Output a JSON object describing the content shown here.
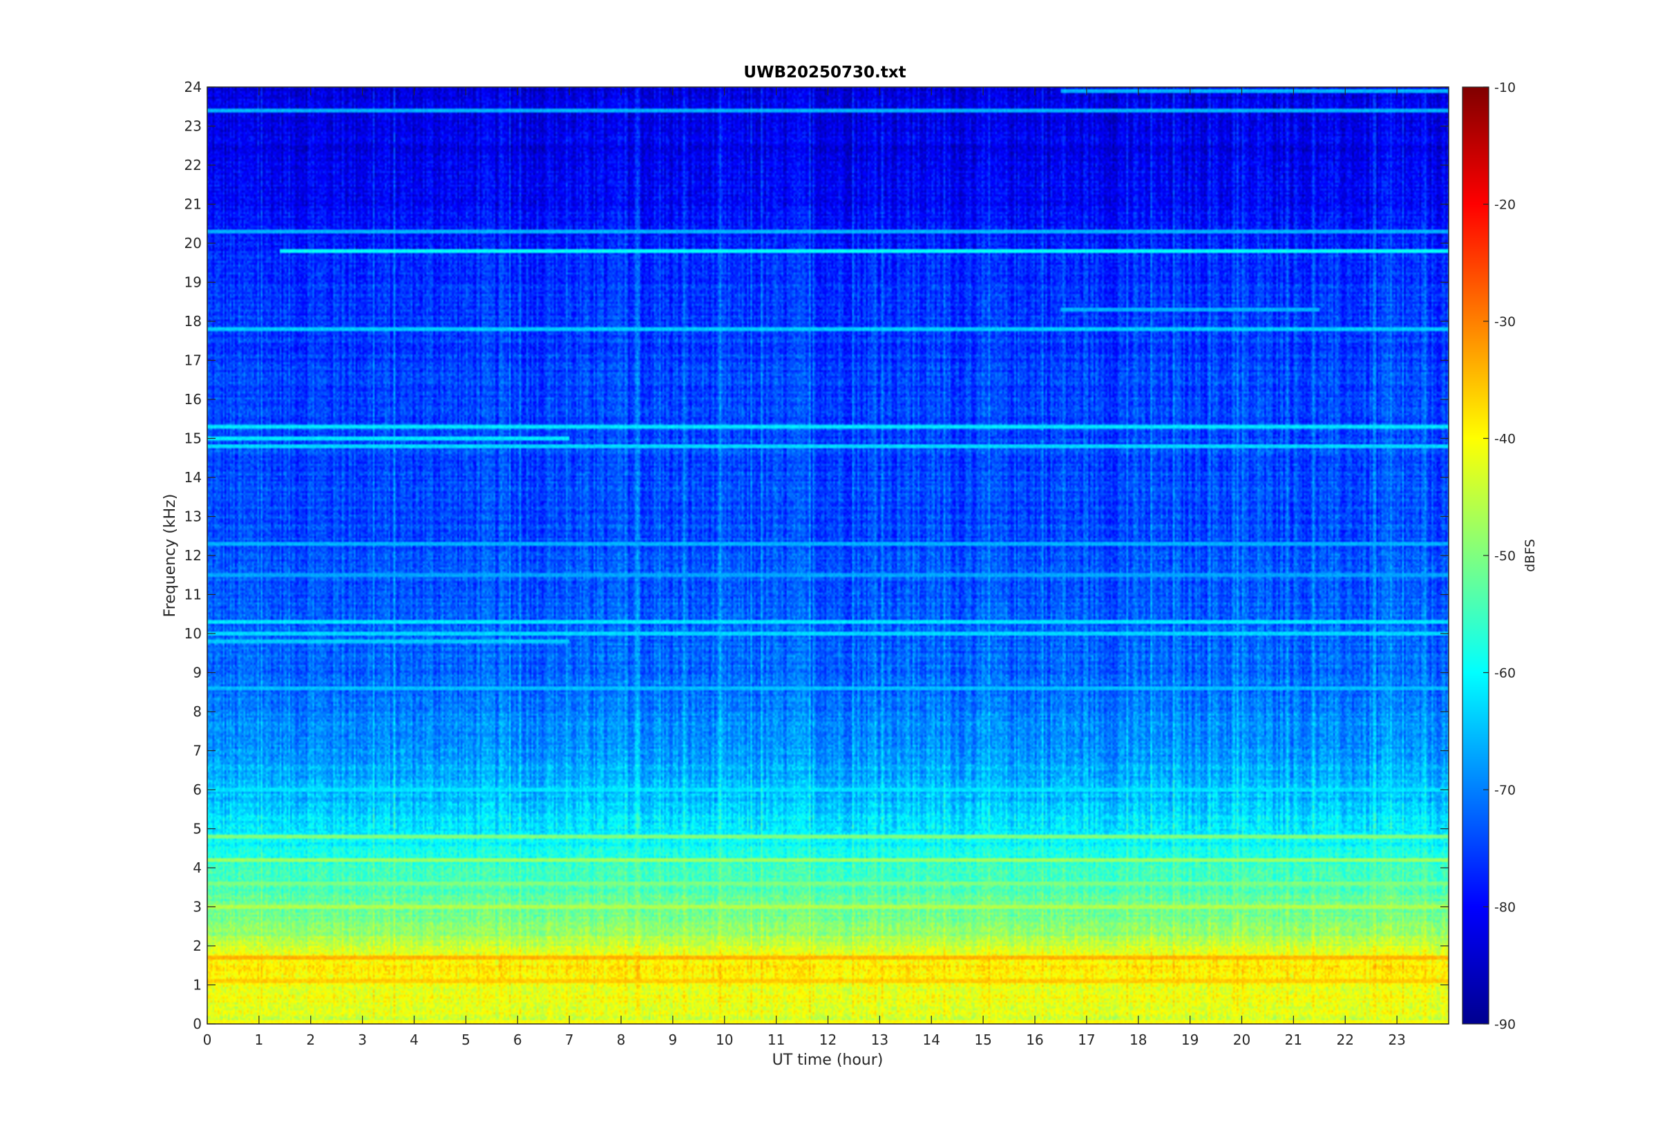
{
  "chart_data": {
    "type": "heatmap",
    "title": "UWB20250730.txt",
    "xlabel": "UT time (hour)",
    "ylabel": "Frequency (kHz)",
    "x_ticks": [
      0,
      1,
      2,
      3,
      4,
      5,
      6,
      7,
      8,
      9,
      10,
      11,
      12,
      13,
      14,
      15,
      16,
      17,
      18,
      19,
      20,
      21,
      22,
      23
    ],
    "y_ticks": [
      0,
      1,
      2,
      3,
      4,
      5,
      6,
      7,
      8,
      9,
      10,
      11,
      12,
      13,
      14,
      15,
      16,
      17,
      18,
      19,
      20,
      21,
      22,
      23,
      24
    ],
    "xlim": [
      0,
      24
    ],
    "ylim": [
      0,
      24
    ],
    "colormap": "jet",
    "colorbar": {
      "label": "dBFS",
      "range": [
        -90,
        -10
      ],
      "ticks": [
        -10,
        -20,
        -30,
        -40,
        -50,
        -60,
        -70,
        -80,
        -90
      ]
    },
    "value_profile_by_frequency": [
      {
        "freq_khz": 0.0,
        "dbfs": -44
      },
      {
        "freq_khz": 0.5,
        "dbfs": -42
      },
      {
        "freq_khz": 1.0,
        "dbfs": -41
      },
      {
        "freq_khz": 1.5,
        "dbfs": -38
      },
      {
        "freq_khz": 2.0,
        "dbfs": -44
      },
      {
        "freq_khz": 2.5,
        "dbfs": -50
      },
      {
        "freq_khz": 3.0,
        "dbfs": -52
      },
      {
        "freq_khz": 4.0,
        "dbfs": -56
      },
      {
        "freq_khz": 5.0,
        "dbfs": -62
      },
      {
        "freq_khz": 6.0,
        "dbfs": -66
      },
      {
        "freq_khz": 7.0,
        "dbfs": -68
      },
      {
        "freq_khz": 8.0,
        "dbfs": -70
      },
      {
        "freq_khz": 9.0,
        "dbfs": -72
      },
      {
        "freq_khz": 12.0,
        "dbfs": -74
      },
      {
        "freq_khz": 16.0,
        "dbfs": -75
      },
      {
        "freq_khz": 19.0,
        "dbfs": -76
      },
      {
        "freq_khz": 21.0,
        "dbfs": -80
      },
      {
        "freq_khz": 24.0,
        "dbfs": -83
      }
    ],
    "persistent_lines": [
      {
        "freq_khz": 19.8,
        "dbfs": -60,
        "start_hour": 1.4,
        "end_hour": 24
      },
      {
        "freq_khz": 20.3,
        "dbfs": -66,
        "start_hour": 0,
        "end_hour": 24
      },
      {
        "freq_khz": 18.3,
        "dbfs": -66,
        "start_hour": 16.5,
        "end_hour": 21.5
      },
      {
        "freq_khz": 17.8,
        "dbfs": -64,
        "start_hour": 0,
        "end_hour": 24
      },
      {
        "freq_khz": 15.3,
        "dbfs": -62,
        "start_hour": 0,
        "end_hour": 24
      },
      {
        "freq_khz": 15.0,
        "dbfs": -62,
        "start_hour": 0,
        "end_hour": 7
      },
      {
        "freq_khz": 14.8,
        "dbfs": -63,
        "start_hour": 0,
        "end_hour": 24
      },
      {
        "freq_khz": 10.3,
        "dbfs": -62,
        "start_hour": 0,
        "end_hour": 24
      },
      {
        "freq_khz": 10.0,
        "dbfs": -63,
        "start_hour": 0,
        "end_hour": 24
      },
      {
        "freq_khz": 9.8,
        "dbfs": -64,
        "start_hour": 0,
        "end_hour": 7
      },
      {
        "freq_khz": 12.3,
        "dbfs": -66,
        "start_hour": 0,
        "end_hour": 24
      },
      {
        "freq_khz": 11.5,
        "dbfs": -67,
        "start_hour": 0,
        "end_hour": 24
      },
      {
        "freq_khz": 8.6,
        "dbfs": -65,
        "start_hour": 0,
        "end_hour": 24
      },
      {
        "freq_khz": 6.0,
        "dbfs": -62,
        "start_hour": 0,
        "end_hour": 24
      },
      {
        "freq_khz": 23.4,
        "dbfs": -66,
        "start_hour": 0,
        "end_hour": 24
      },
      {
        "freq_khz": 23.9,
        "dbfs": -66,
        "start_hour": 16.5,
        "end_hour": 24
      },
      {
        "freq_khz": 4.8,
        "dbfs": -50,
        "start_hour": 0,
        "end_hour": 24
      },
      {
        "freq_khz": 4.2,
        "dbfs": -48,
        "start_hour": 0,
        "end_hour": 24
      },
      {
        "freq_khz": 3.6,
        "dbfs": -50,
        "start_hour": 0,
        "end_hour": 24
      },
      {
        "freq_khz": 3.0,
        "dbfs": -46,
        "start_hour": 0,
        "end_hour": 24
      },
      {
        "freq_khz": 1.7,
        "dbfs": -34,
        "start_hour": 0,
        "end_hour": 24
      },
      {
        "freq_khz": 1.1,
        "dbfs": -36,
        "start_hour": 0,
        "end_hour": 24
      },
      {
        "freq_khz": 0.05,
        "dbfs": -40,
        "start_hour": 0,
        "end_hour": 24
      }
    ],
    "grid": false
  }
}
